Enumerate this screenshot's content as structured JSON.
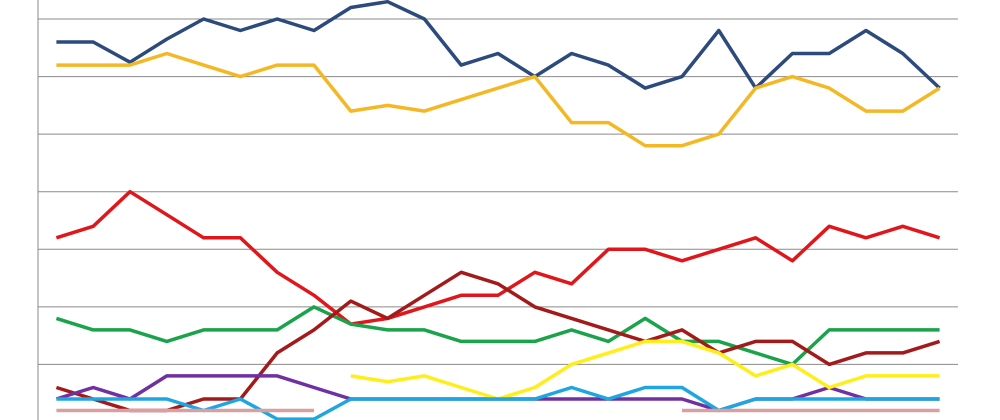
{
  "chart_data": {
    "type": "line",
    "categories": [
      null,
      null,
      null,
      null,
      null,
      null,
      null,
      null,
      null,
      null,
      null,
      null,
      null,
      null,
      null,
      null,
      null,
      null,
      null,
      null,
      null,
      null,
      null,
      null,
      null
    ],
    "ylim": [
      0,
      7.33
    ],
    "yticks": [
      1,
      2,
      3,
      4,
      5,
      6,
      7
    ],
    "grid": true,
    "series": [
      {
        "color": "#2c4a7c",
        "values": [
          6.6,
          6.6,
          6.25,
          6.65,
          7.0,
          6.8,
          7.0,
          6.8,
          7.2,
          7.3,
          7.0,
          6.2,
          6.4,
          6.0,
          6.4,
          6.2,
          5.8,
          6.0,
          6.8,
          5.8,
          6.4,
          6.4,
          6.8,
          6.4,
          5.8
        ]
      },
      {
        "color": "#f4b824",
        "values": [
          6.2,
          6.2,
          6.2,
          6.4,
          6.2,
          6.0,
          6.2,
          6.2,
          5.4,
          5.5,
          5.4,
          5.6,
          5.8,
          6.0,
          5.2,
          5.2,
          4.8,
          4.8,
          5.0,
          5.8,
          6.0,
          5.8,
          5.4,
          5.4,
          5.8
        ]
      },
      {
        "color": "#e0161b",
        "values": [
          3.2,
          3.4,
          4.0,
          3.6,
          3.2,
          3.2,
          2.6,
          2.2,
          1.7,
          1.8,
          2.0,
          2.2,
          2.2,
          2.6,
          2.4,
          3.0,
          3.0,
          2.8,
          3.0,
          3.2,
          2.8,
          3.4,
          3.2,
          3.4,
          3.2
        ]
      },
      {
        "color": "#1aa34a",
        "values": [
          1.8,
          1.6,
          1.6,
          1.4,
          1.6,
          1.6,
          1.6,
          2.0,
          1.7,
          1.6,
          1.6,
          1.4,
          1.4,
          1.4,
          1.6,
          1.4,
          1.8,
          1.4,
          1.4,
          1.2,
          1.0,
          1.6,
          1.6,
          1.6,
          1.6
        ]
      },
      {
        "color": "#a31a1a",
        "values": [
          0.6,
          0.4,
          0.2,
          0.2,
          0.4,
          0.4,
          1.2,
          1.6,
          2.1,
          1.8,
          2.2,
          2.6,
          2.4,
          2.0,
          1.8,
          1.6,
          1.4,
          1.6,
          1.2,
          1.4,
          1.4,
          1.0,
          1.2,
          1.2,
          1.4
        ]
      },
      {
        "color": "#7030a0",
        "values": [
          0.4,
          0.6,
          0.4,
          0.8,
          0.8,
          0.8,
          0.8,
          0.6,
          0.4,
          0.4,
          0.4,
          0.4,
          0.4,
          0.4,
          0.4,
          0.4,
          0.4,
          0.4,
          0.2,
          0.4,
          0.4,
          0.6,
          0.4,
          0.4,
          0.4
        ]
      },
      {
        "color": "#ffee1a",
        "values": [
          null,
          null,
          null,
          null,
          null,
          null,
          null,
          null,
          0.8,
          0.7,
          0.8,
          0.6,
          0.4,
          0.6,
          1.0,
          1.2,
          1.4,
          1.4,
          1.2,
          0.8,
          1.0,
          0.6,
          0.8,
          0.8,
          0.8
        ]
      },
      {
        "color": "#1ea6e0",
        "values": [
          0.4,
          0.4,
          0.4,
          0.4,
          0.2,
          0.4,
          0.05,
          0.05,
          0.4,
          0.4,
          0.4,
          0.4,
          0.4,
          0.4,
          0.6,
          0.4,
          0.6,
          0.6,
          0.2,
          0.4,
          0.4,
          0.4,
          0.4,
          0.4,
          0.4
        ]
      },
      {
        "color": "#d8a0a0",
        "values": [
          0.2,
          0.2,
          0.2,
          0.2,
          0.2,
          0.2,
          0.2,
          0.2,
          null,
          null,
          null,
          null,
          null,
          null,
          null,
          null,
          null,
          0.2,
          0.2,
          0.2,
          0.2,
          0.2,
          0.2,
          0.2,
          0.2
        ]
      }
    ]
  }
}
